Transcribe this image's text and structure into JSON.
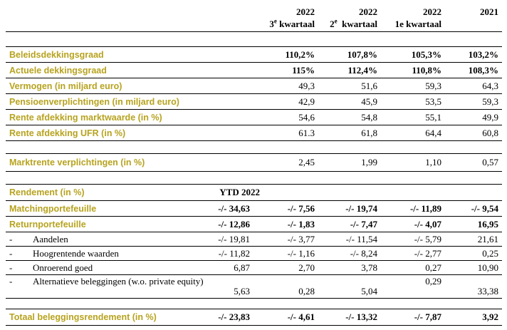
{
  "header": {
    "col1": {
      "year": "2022",
      "sup": "e",
      "pre": "3",
      "label": " kwartaal"
    },
    "col2": {
      "year": "2022",
      "sup": "e",
      "pre": "2",
      "label": "  kwartaal"
    },
    "col3": {
      "year": "2022",
      "label": "1e kwartaal"
    },
    "col4": {
      "year": "2021"
    }
  },
  "rows": {
    "beleid": {
      "label": "Beleidsdekkingsgraad",
      "v": [
        "110,2%",
        "107,8%",
        "105,3%",
        "103,2%"
      ]
    },
    "actueel": {
      "label": "Actuele dekkingsgraad",
      "v": [
        "115%",
        "112,4%",
        "110,8%",
        "108,3%"
      ]
    },
    "vermogen": {
      "label": "Vermogen (in miljard euro)",
      "v": [
        "49,3",
        "51,6",
        "59,3",
        "64,3"
      ]
    },
    "pensioen": {
      "label": "Pensioenverplichtingen (in miljard euro)",
      "v": [
        "42,9",
        "45,9",
        "53,5",
        "59,3"
      ]
    },
    "rente_mw": {
      "label": "Rente afdekking marktwaarde (in %)",
      "v": [
        "54,6",
        "54,8",
        "55,1",
        "49,9"
      ]
    },
    "rente_ufr": {
      "label": "Rente afdekking UFR (in %)",
      "v": [
        "61.3",
        "61,8",
        "64,4",
        "60,8"
      ]
    },
    "marktrente": {
      "label": "Marktrente verplichtingen (in %)",
      "v": [
        "2,45",
        "1,99",
        "1,10",
        "0,57"
      ]
    },
    "rendement": {
      "label": "Rendement (in %)",
      "ytd": "YTD 2022"
    },
    "matching": {
      "label": "Matchingportefeuille",
      "v": [
        "-/- 34,63",
        "-/- 7,56",
        "-/- 19,74",
        "-/- 11,89",
        "-/- 9,54"
      ]
    },
    "return": {
      "label": "Returnportefeuille",
      "v": [
        "-/- 12,86",
        "-/- 1,83",
        "-/- 7,47",
        "-/- 4,07",
        "16,95"
      ]
    },
    "aandelen": {
      "dash": "-",
      "label": "Aandelen",
      "v": [
        "-/- 19,81",
        "-/- 3,77",
        "-/- 11,54",
        "-/- 5,79",
        "21,61"
      ]
    },
    "hoogrentende": {
      "dash": "-",
      "label": "Hoogrentende waarden",
      "v": [
        "-/- 11,82",
        "-/- 1,16",
        "-/- 8,24",
        "-/- 2,77",
        "0,25"
      ]
    },
    "onroerend": {
      "dash": "-",
      "label": "Onroerend goed",
      "v": [
        "6,87",
        "2,70",
        "3,78",
        "0,27",
        "10,90"
      ]
    },
    "alternatieve": {
      "dash": "-",
      "label": "Alternatieve beleggingen (w.o. private equity)",
      "v": [
        "5,63",
        "0,28",
        "5,04",
        "0,29",
        "33,38"
      ]
    },
    "totaal": {
      "label": "Totaal beleggingsrendement (in %)",
      "v": [
        "-/- 23,83",
        "-/- 4,61",
        "-/- 13,32",
        "-/- 7,87",
        "3,92"
      ]
    }
  }
}
